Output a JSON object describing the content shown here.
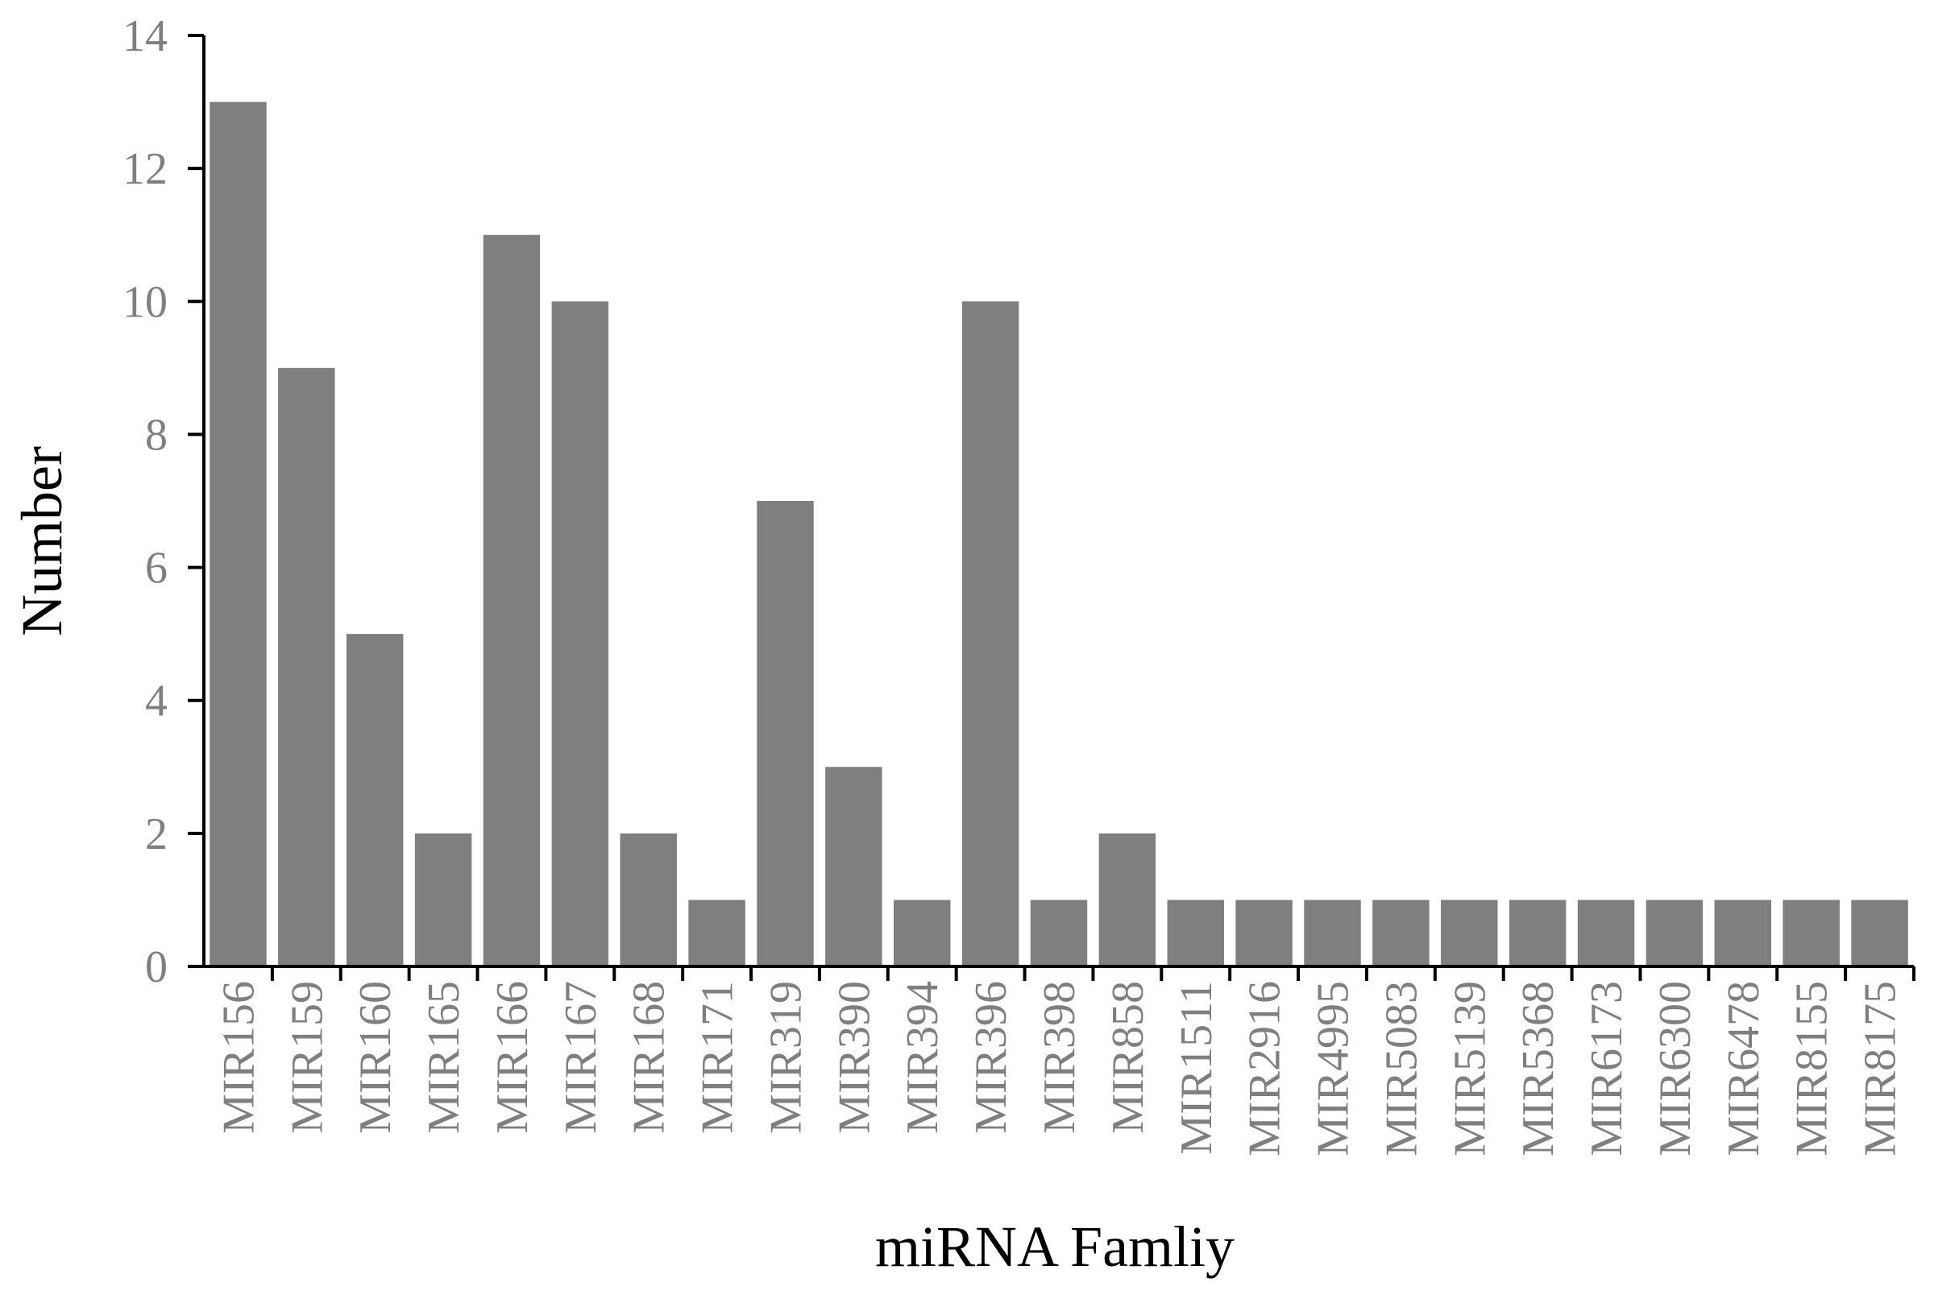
{
  "chart_data": {
    "type": "bar",
    "categories": [
      "MIR156",
      "MIR159",
      "MIR160",
      "MIR165",
      "MIR166",
      "MIR167",
      "MIR168",
      "MIR171",
      "MIR319",
      "MIR390",
      "MIR394",
      "MIR396",
      "MIR398",
      "MIR858",
      "MIR1511",
      "MIR2916",
      "MIR4995",
      "MIR5083",
      "MIR5139",
      "MIR5368",
      "MIR6173",
      "MIR6300",
      "MIR6478",
      "MIR8155",
      "MIR8175"
    ],
    "values": [
      13,
      9,
      5,
      2,
      11,
      10,
      2,
      1,
      7,
      3,
      1,
      10,
      1,
      2,
      1,
      1,
      1,
      1,
      1,
      1,
      1,
      1,
      1,
      1,
      1
    ],
    "xlabel": "miRNA Famliy",
    "ylabel": "Number",
    "ylim": [
      0,
      14
    ],
    "yticks": [
      0,
      2,
      4,
      6,
      8,
      10,
      12,
      14
    ],
    "grid": false,
    "bar_color": "#7f7f7f",
    "tick_label_color": "#7f7f7f",
    "axis_color": "#000000"
  }
}
